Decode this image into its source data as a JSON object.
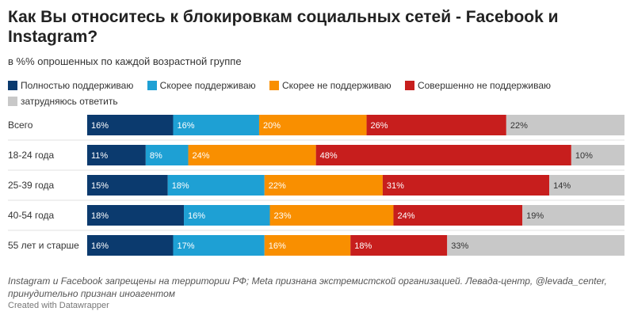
{
  "title": "Как Вы относитесь к блокировкам социальных сетей - Facebook и Instagram?",
  "subtitle": "в %% опрошенных по каждой возрастной группе",
  "colors": {
    "fully_support": "#0b3a6e",
    "rather_support": "#1ea0d4",
    "rather_not_support": "#f98f00",
    "strongly_not_support": "#c71e1d",
    "hard_to_say": "#c8c8c8",
    "row_divider": "#e2e2e2"
  },
  "chart_data": {
    "type": "bar",
    "orientation": "horizontal",
    "stacked": true,
    "normalized": true,
    "categories": [
      "Всего",
      "18-24 года",
      "25-39 года",
      "40-54 года",
      "55 лет и старше"
    ],
    "series": [
      {
        "name": "Полностью поддерживаю",
        "color": "#0b3a6e",
        "label_color": "#ffffff",
        "values": [
          16,
          11,
          15,
          18,
          16
        ]
      },
      {
        "name": "Скорее поддерживаю",
        "color": "#1ea0d4",
        "label_color": "#ffffff",
        "values": [
          16,
          8,
          18,
          16,
          17
        ]
      },
      {
        "name": "Скорее не поддерживаю",
        "color": "#f98f00",
        "label_color": "#ffffff",
        "values": [
          20,
          24,
          22,
          23,
          16
        ]
      },
      {
        "name": "Совершенно не поддерживаю",
        "color": "#c71e1d",
        "label_color": "#ffffff",
        "values": [
          26,
          48,
          31,
          24,
          18
        ]
      },
      {
        "name": "затрудняюсь ответить",
        "color": "#c8c8c8",
        "label_color": "#333333",
        "values": [
          22,
          10,
          14,
          19,
          33
        ]
      }
    ],
    "value_suffix": "%",
    "legend": "top"
  },
  "note": "Instagram и Facebook запрещены на территории РФ; Meta признана экстремистской организацией. Левада-центр, @levada_center, принудительно признан иноагентом",
  "credit": "Created with Datawrapper"
}
